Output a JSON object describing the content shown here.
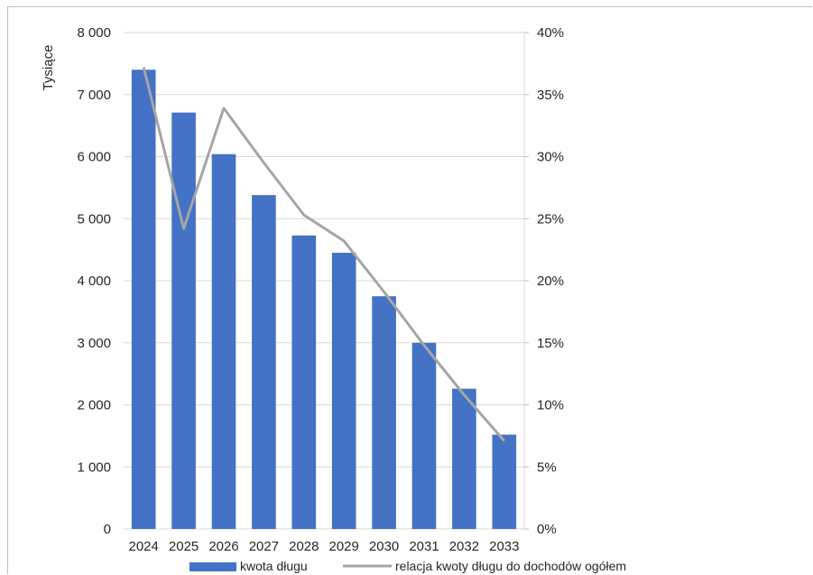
{
  "chart_data": {
    "type": "bar",
    "categories": [
      "2024",
      "2025",
      "2026",
      "2027",
      "2028",
      "2029",
      "2030",
      "2031",
      "2032",
      "2033"
    ],
    "series": [
      {
        "name": "kwota długu",
        "type": "bar",
        "axis": "left",
        "color": "#4472c4",
        "values": [
          7400,
          6710,
          6040,
          5380,
          4730,
          4450,
          3750,
          3000,
          2260,
          1520
        ]
      },
      {
        "name": "relacja kwoty długu do dochodów ogółem",
        "type": "line",
        "axis": "right",
        "color": "#a5a5a5",
        "values": [
          37.2,
          24.2,
          33.9,
          29.5,
          25.3,
          23.2,
          19.1,
          14.8,
          10.8,
          7.1
        ]
      }
    ],
    "ylabel": "Tysiące",
    "ylim": [
      0,
      8000
    ],
    "yticks": [
      0,
      1000,
      2000,
      3000,
      4000,
      5000,
      6000,
      7000,
      8000
    ],
    "ytick_labels": [
      "0",
      "1 000",
      "2 000",
      "3 000",
      "4 000",
      "5 000",
      "6 000",
      "7 000",
      "8 000"
    ],
    "y2lim": [
      0,
      40
    ],
    "y2ticks": [
      0,
      5,
      10,
      15,
      20,
      25,
      30,
      35,
      40
    ],
    "y2tick_labels": [
      "0%",
      "5%",
      "10%",
      "15%",
      "20%",
      "25%",
      "30%",
      "35%",
      "40%"
    ],
    "grid": true,
    "legend": "bottom"
  }
}
